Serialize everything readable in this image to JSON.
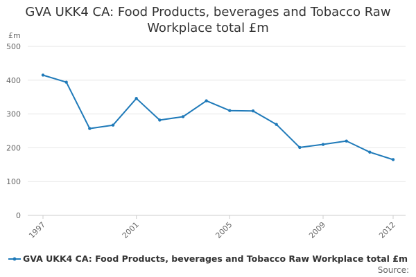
{
  "chart_data": {
    "type": "line",
    "title_lines": [
      "GVA UKK4 CA: Food Products, beverages and Tobacco Raw",
      "Workplace total £m"
    ],
    "title": "GVA UKK4 CA: Food Products, beverages and Tobacco Raw Workplace total £m",
    "xlabel": "",
    "ylabel": "£m",
    "ylim": [
      0,
      500
    ],
    "yticks": [
      0,
      100,
      200,
      300,
      400,
      500
    ],
    "xlim": [
      1997,
      2012
    ],
    "xticks": [
      1997,
      2001,
      2005,
      2009,
      2012
    ],
    "grid": true,
    "legend_position": "bottom-left",
    "series": [
      {
        "name": "GVA UKK4 CA: Food Products, beverages and Tobacco Raw Workplace total £m",
        "color": "#1f7ab9",
        "x": [
          1997,
          1998,
          1999,
          2000,
          2001,
          2002,
          2003,
          2004,
          2005,
          2006,
          2007,
          2008,
          2009,
          2010,
          2011,
          2012
        ],
        "values": [
          415,
          394,
          257,
          267,
          346,
          282,
          292,
          339,
          310,
          309,
          269,
          201,
          210,
          220,
          187,
          165
        ]
      }
    ]
  },
  "source_label": "Source:"
}
